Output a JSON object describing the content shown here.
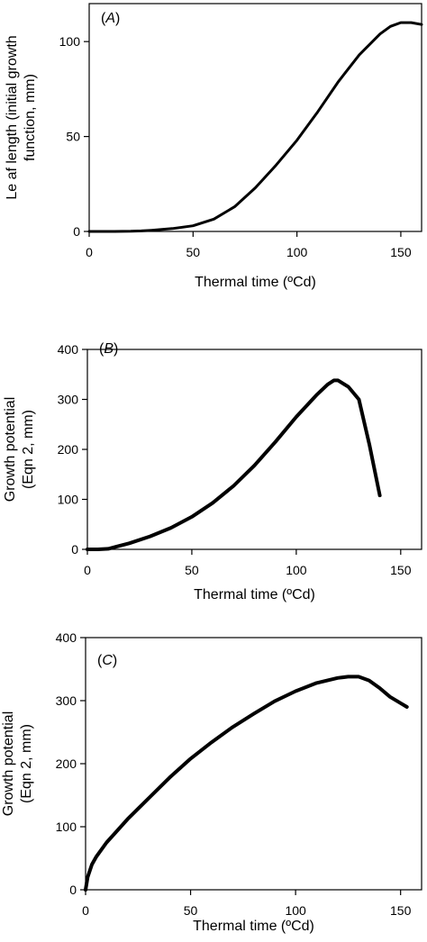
{
  "chart_data": [
    {
      "type": "line",
      "panel_label": "(A)",
      "xlabel": "Thermal time (ºCd)",
      "ylabel_lines": [
        "Le af length (initial growth",
        "function, mm)"
      ],
      "xlim": [
        0,
        160
      ],
      "ylim": [
        0,
        120
      ],
      "xticks": [
        0,
        50,
        100,
        150
      ],
      "yticks": [
        0,
        50,
        100
      ],
      "grid": false,
      "series": [
        {
          "stroke_width": 3,
          "x": [
            0,
            10,
            20,
            25,
            30,
            40,
            50,
            60,
            70,
            80,
            90,
            100,
            110,
            120,
            130,
            140,
            145,
            150,
            155,
            160
          ],
          "y": [
            0,
            0,
            0.1,
            0.3,
            0.6,
            1.5,
            3,
            6.5,
            13,
            23,
            35,
            48,
            63,
            79,
            93,
            104,
            108,
            110,
            110,
            109
          ]
        }
      ]
    },
    {
      "type": "line",
      "panel_label": "(B)",
      "xlabel": "Thermal time (ºCd)",
      "ylabel_lines": [
        "Growth potential",
        "(Eqn 2, mm)"
      ],
      "xlim": [
        0,
        160
      ],
      "ylim": [
        0,
        400
      ],
      "xticks": [
        0,
        50,
        100,
        150
      ],
      "yticks": [
        0,
        100,
        200,
        300,
        400
      ],
      "grid": false,
      "series": [
        {
          "stroke_width": 4,
          "x": [
            0,
            5,
            10,
            20,
            30,
            40,
            50,
            60,
            70,
            80,
            90,
            100,
            110,
            115,
            118,
            120,
            125,
            130,
            135,
            140
          ],
          "y": [
            0,
            0,
            1,
            12,
            26,
            43,
            65,
            93,
            127,
            168,
            215,
            265,
            310,
            330,
            338,
            338,
            325,
            300,
            210,
            108
          ]
        }
      ]
    },
    {
      "type": "line",
      "panel_label": "(C)",
      "xlabel": "Thermal time (ºCd)",
      "ylabel_lines": [
        "Growth potential",
        "(Eqn 2, mm)"
      ],
      "xlim": [
        0,
        160
      ],
      "ylim": [
        0,
        400
      ],
      "xticks": [
        0,
        50,
        100,
        150
      ],
      "yticks": [
        0,
        100,
        200,
        300,
        400
      ],
      "grid": false,
      "series": [
        {
          "stroke_width": 4,
          "x": [
            0,
            1,
            3,
            5,
            10,
            20,
            30,
            40,
            50,
            60,
            70,
            80,
            90,
            100,
            110,
            120,
            125,
            130,
            135,
            140,
            145,
            150,
            153
          ],
          "y": [
            0,
            20,
            40,
            52,
            75,
            112,
            145,
            178,
            208,
            234,
            258,
            279,
            299,
            315,
            328,
            336,
            338,
            338,
            332,
            320,
            306,
            296,
            290
          ]
        }
      ]
    }
  ]
}
